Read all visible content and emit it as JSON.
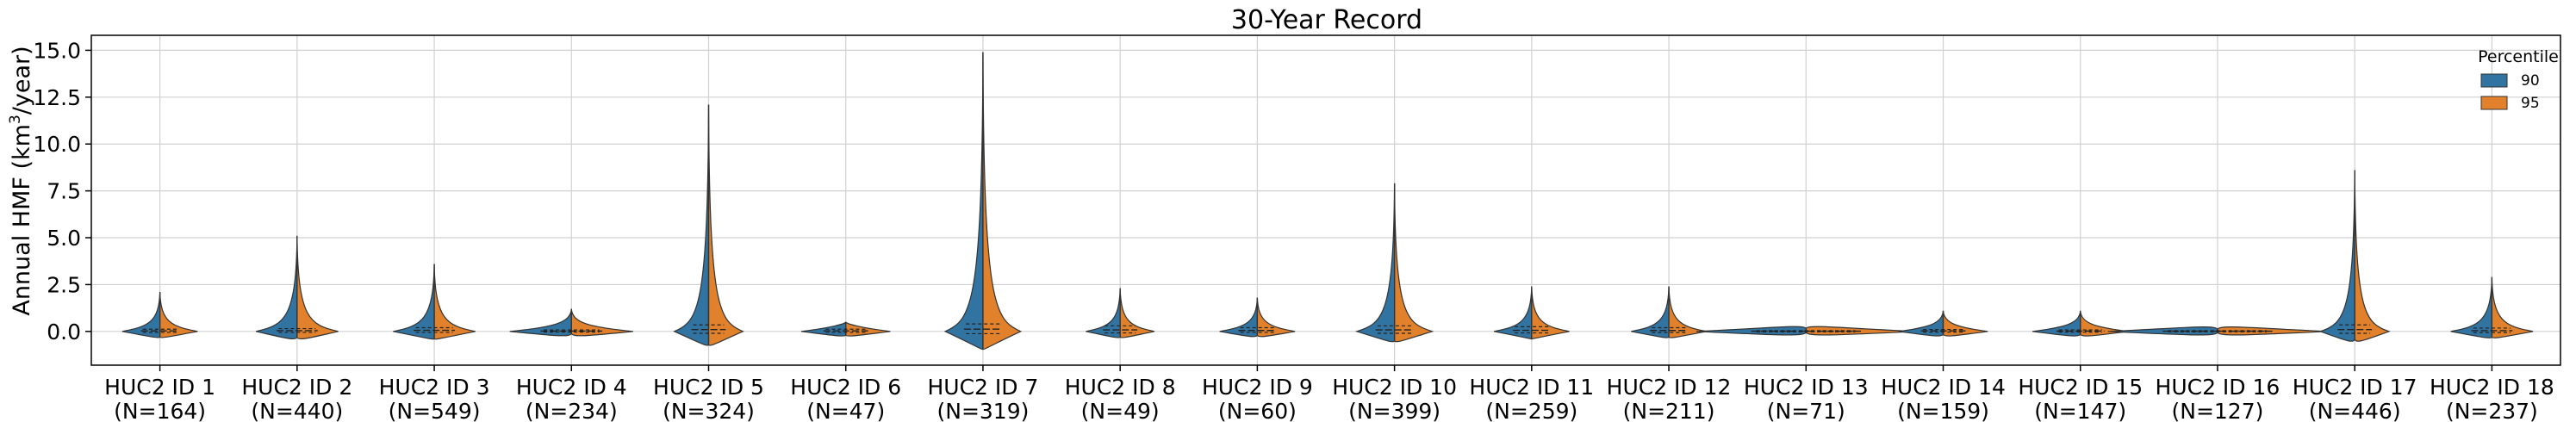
{
  "chart_data": {
    "type": "violin",
    "title": "30-Year Record",
    "ylabel_main": "Annual HMF (km",
    "ylabel_sup": "3",
    "ylabel_end": "/year)",
    "xlabel": "",
    "ylim": [
      -1.8,
      15.8
    ],
    "yticks": [
      0.0,
      2.5,
      5.0,
      7.5,
      10.0,
      12.5,
      15.0
    ],
    "ytick_labels": [
      "0.0",
      "2.5",
      "5.0",
      "7.5",
      "10.0",
      "12.5",
      "15.0"
    ],
    "grid": true,
    "legend": {
      "title": "Percentile",
      "placement": "top-right",
      "entries": [
        {
          "label": "90",
          "color": "#3274a1"
        },
        {
          "label": "95",
          "color": "#e1812c"
        }
      ]
    },
    "categories": [
      {
        "name": "HUC2 ID 1",
        "n": "(N=164)",
        "min": -0.3,
        "max": 2.1,
        "q1": -0.05,
        "q3": 0.12,
        "med": 0.03,
        "width": 0.55
      },
      {
        "name": "HUC2 ID 2",
        "n": "(N=440)",
        "min": -0.3,
        "max": 5.1,
        "q1": -0.05,
        "q3": 0.15,
        "med": 0.04,
        "width": 0.6
      },
      {
        "name": "HUC2 ID 3",
        "n": "(N=549)",
        "min": -0.4,
        "max": 3.6,
        "q1": -0.05,
        "q3": 0.2,
        "med": 0.06,
        "width": 0.6
      },
      {
        "name": "HUC2 ID 4",
        "n": "(N=234)",
        "min": -0.1,
        "max": 1.2,
        "q1": -0.03,
        "q3": 0.08,
        "med": 0.02,
        "width": 0.9
      },
      {
        "name": "HUC2 ID 5",
        "n": "(N=324)",
        "min": -0.7,
        "max": 12.1,
        "q1": -0.1,
        "q3": 0.35,
        "med": 0.1,
        "width": 0.5
      },
      {
        "name": "HUC2 ID 6",
        "n": "(N=47)",
        "min": -0.2,
        "max": 0.5,
        "q1": -0.05,
        "q3": 0.12,
        "med": 0.03,
        "width": 0.65
      },
      {
        "name": "HUC2 ID 7",
        "n": "(N=319)",
        "min": -0.95,
        "max": 14.9,
        "q1": -0.12,
        "q3": 0.4,
        "med": 0.12,
        "width": 0.55
      },
      {
        "name": "HUC2 ID 8",
        "n": "(N=49)",
        "min": -0.3,
        "max": 2.3,
        "q1": -0.08,
        "q3": 0.3,
        "med": 0.08,
        "width": 0.5
      },
      {
        "name": "HUC2 ID 9",
        "n": "(N=60)",
        "min": -0.2,
        "max": 1.8,
        "q1": -0.05,
        "q3": 0.2,
        "med": 0.05,
        "width": 0.55
      },
      {
        "name": "HUC2 ID 10",
        "n": "(N=399)",
        "min": -0.5,
        "max": 7.9,
        "q1": -0.1,
        "q3": 0.3,
        "med": 0.08,
        "width": 0.55
      },
      {
        "name": "HUC2 ID 11",
        "n": "(N=259)",
        "min": -0.4,
        "max": 2.4,
        "q1": -0.08,
        "q3": 0.25,
        "med": 0.06,
        "width": 0.55
      },
      {
        "name": "HUC2 ID 12",
        "n": "(N=211)",
        "min": -0.3,
        "max": 2.4,
        "q1": -0.06,
        "q3": 0.2,
        "med": 0.05,
        "width": 0.55
      },
      {
        "name": "HUC2 ID 13",
        "n": "(N=71)",
        "min": -0.05,
        "max": 0.15,
        "q1": -0.02,
        "q3": 0.04,
        "med": 0.01,
        "width": 1.6
      },
      {
        "name": "HUC2 ID 14",
        "n": "(N=159)",
        "min": -0.15,
        "max": 1.1,
        "q1": -0.04,
        "q3": 0.1,
        "med": 0.03,
        "width": 0.65
      },
      {
        "name": "HUC2 ID 15",
        "n": "(N=147)",
        "min": -0.15,
        "max": 1.1,
        "q1": -0.04,
        "q3": 0.08,
        "med": 0.02,
        "width": 0.7
      },
      {
        "name": "HUC2 ID 16",
        "n": "(N=127)",
        "min": -0.05,
        "max": 0.1,
        "q1": -0.02,
        "q3": 0.04,
        "med": 0.01,
        "width": 1.6
      },
      {
        "name": "HUC2 ID 17",
        "n": "(N=446)",
        "min": -0.4,
        "max": 8.6,
        "q1": -0.1,
        "q3": 0.35,
        "med": 0.1,
        "width": 0.5
      },
      {
        "name": "HUC2 ID 18",
        "n": "(N=237)",
        "min": -0.3,
        "max": 2.9,
        "q1": -0.06,
        "q3": 0.18,
        "med": 0.04,
        "width": 0.6
      }
    ]
  }
}
